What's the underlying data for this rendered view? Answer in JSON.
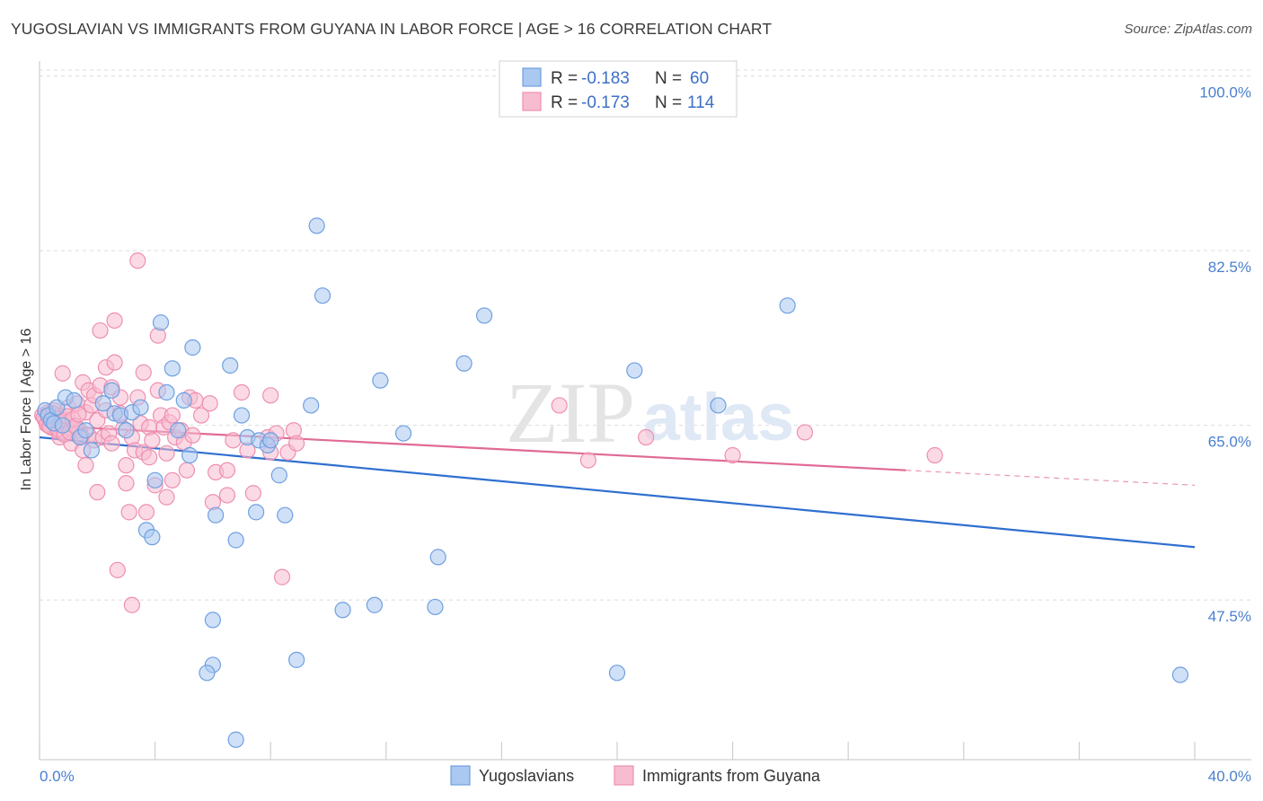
{
  "header": {
    "title": "YUGOSLAVIAN VS IMMIGRANTS FROM GUYANA IN LABOR FORCE | AGE > 16 CORRELATION CHART",
    "source": "Source: ZipAtlas.com"
  },
  "watermark": {
    "zip": "ZIP",
    "atlas": "atlas"
  },
  "colors": {
    "blue_fill": "#aac8f0",
    "blue_stroke": "#6f9fe0",
    "blue_line": "#2f6fd0",
    "pink_fill": "#f7bcd0",
    "pink_stroke": "#ee8fb0",
    "pink_line": "#e06a96",
    "grid": "#dcdcdc",
    "tick_label": "#4a7fd0"
  },
  "chart_data": {
    "type": "scatter",
    "title": "YUGOSLAVIAN VS IMMIGRANTS FROM GUYANA IN LABOR FORCE | AGE > 16 CORRELATION CHART",
    "xlabel": "",
    "ylabel": "In Labor Force | Age > 16",
    "xlim": [
      0,
      40
    ],
    "ylim": [
      31.5,
      101.5
    ],
    "y_ticks": [
      47.5,
      65.0,
      82.5,
      100.0
    ],
    "y_tick_labels": [
      "47.5%",
      "65.0%",
      "82.5%",
      "100.0%"
    ],
    "x_tick_labels": [
      "0.0%",
      "40.0%"
    ],
    "legend": {
      "position": "top-center",
      "entries": [
        {
          "r_label": "R =",
          "r_value": "-0.183",
          "n_label": "N =",
          "n_value": "60"
        },
        {
          "r_label": "R =",
          "r_value": "-0.173",
          "n_label": "N =",
          "n_value": "114"
        }
      ]
    },
    "series": [
      {
        "name": "Yugoslavians",
        "trend": {
          "x": [
            0,
            40
          ],
          "y": [
            63.8,
            52.8
          ],
          "solid_until": 40
        },
        "points": [
          [
            0.2,
            66.5
          ],
          [
            0.3,
            66.0
          ],
          [
            0.4,
            65.5
          ],
          [
            0.5,
            65.2
          ],
          [
            0.6,
            66.8
          ],
          [
            0.8,
            65.0
          ],
          [
            0.9,
            67.8
          ],
          [
            1.2,
            67.5
          ],
          [
            1.4,
            63.8
          ],
          [
            1.6,
            64.5
          ],
          [
            1.8,
            62.5
          ],
          [
            2.2,
            67.2
          ],
          [
            2.5,
            68.5
          ],
          [
            2.6,
            66.2
          ],
          [
            2.8,
            66.0
          ],
          [
            3.0,
            64.5
          ],
          [
            3.2,
            66.3
          ],
          [
            3.5,
            66.8
          ],
          [
            3.7,
            54.5
          ],
          [
            3.9,
            53.8
          ],
          [
            4.0,
            59.5
          ],
          [
            4.2,
            75.3
          ],
          [
            4.4,
            68.3
          ],
          [
            4.6,
            70.7
          ],
          [
            4.8,
            64.5
          ],
          [
            5.0,
            67.5
          ],
          [
            5.2,
            62.0
          ],
          [
            5.3,
            72.8
          ],
          [
            6.0,
            41.0
          ],
          [
            5.8,
            40.2
          ],
          [
            6.1,
            56.0
          ],
          [
            6.6,
            71.0
          ],
          [
            6.8,
            33.5
          ],
          [
            6.8,
            53.5
          ],
          [
            7.0,
            66.0
          ],
          [
            7.2,
            63.8
          ],
          [
            7.5,
            56.3
          ],
          [
            7.6,
            63.5
          ],
          [
            7.9,
            63.0
          ],
          [
            8.0,
            63.5
          ],
          [
            8.3,
            60.0
          ],
          [
            8.5,
            56.0
          ],
          [
            8.9,
            41.5
          ],
          [
            9.4,
            67.0
          ],
          [
            9.6,
            85.0
          ],
          [
            9.8,
            78.0
          ],
          [
            10.5,
            46.5
          ],
          [
            11.6,
            47.0
          ],
          [
            11.8,
            69.5
          ],
          [
            12.6,
            64.2
          ],
          [
            13.7,
            46.8
          ],
          [
            13.8,
            51.8
          ],
          [
            14.7,
            71.2
          ],
          [
            15.4,
            76.0
          ],
          [
            20.0,
            40.2
          ],
          [
            20.6,
            70.5
          ],
          [
            23.5,
            67.0
          ],
          [
            25.9,
            77.0
          ],
          [
            39.5,
            40.0
          ],
          [
            6.0,
            45.5
          ]
        ]
      },
      {
        "name": "Immigrants from Guyana",
        "trend": {
          "x": [
            0,
            40
          ],
          "y": [
            65.0,
            59.0
          ],
          "solid_until": 30
        },
        "points": [
          [
            0.1,
            66.0
          ],
          [
            0.2,
            65.5
          ],
          [
            0.3,
            65.0
          ],
          [
            0.3,
            66.3
          ],
          [
            0.4,
            64.8
          ],
          [
            0.5,
            65.2
          ],
          [
            0.5,
            66.5
          ],
          [
            0.6,
            64.5
          ],
          [
            0.7,
            66.0
          ],
          [
            0.7,
            63.8
          ],
          [
            0.8,
            65.5
          ],
          [
            0.8,
            70.2
          ],
          [
            0.9,
            64.2
          ],
          [
            1.0,
            66.8
          ],
          [
            1.0,
            64.8
          ],
          [
            1.1,
            63.2
          ],
          [
            1.2,
            65.0
          ],
          [
            1.3,
            67.2
          ],
          [
            1.4,
            64.5
          ],
          [
            1.5,
            69.3
          ],
          [
            1.5,
            62.5
          ],
          [
            1.6,
            66.3
          ],
          [
            1.6,
            61.0
          ],
          [
            1.7,
            68.5
          ],
          [
            1.7,
            64.0
          ],
          [
            1.8,
            67.0
          ],
          [
            1.9,
            63.5
          ],
          [
            1.9,
            68.0
          ],
          [
            2.0,
            65.5
          ],
          [
            2.0,
            58.3
          ],
          [
            2.1,
            69.0
          ],
          [
            2.1,
            74.5
          ],
          [
            2.2,
            63.8
          ],
          [
            2.3,
            70.8
          ],
          [
            2.3,
            66.5
          ],
          [
            2.4,
            64.2
          ],
          [
            2.5,
            68.8
          ],
          [
            2.5,
            63.2
          ],
          [
            2.6,
            75.5
          ],
          [
            2.6,
            71.3
          ],
          [
            2.7,
            50.5
          ],
          [
            2.8,
            67.8
          ],
          [
            2.8,
            66.2
          ],
          [
            2.9,
            64.7
          ],
          [
            3.0,
            59.2
          ],
          [
            3.0,
            61.0
          ],
          [
            3.1,
            56.3
          ],
          [
            3.2,
            63.8
          ],
          [
            3.2,
            47.0
          ],
          [
            3.3,
            62.5
          ],
          [
            3.4,
            81.5
          ],
          [
            3.4,
            67.8
          ],
          [
            3.5,
            65.2
          ],
          [
            3.6,
            70.3
          ],
          [
            3.6,
            62.3
          ],
          [
            3.7,
            56.3
          ],
          [
            3.8,
            64.8
          ],
          [
            3.8,
            61.8
          ],
          [
            3.9,
            63.5
          ],
          [
            4.0,
            59.0
          ],
          [
            4.1,
            74.0
          ],
          [
            4.1,
            68.5
          ],
          [
            4.2,
            66.0
          ],
          [
            4.3,
            64.8
          ],
          [
            4.4,
            62.2
          ],
          [
            4.4,
            57.8
          ],
          [
            4.5,
            65.3
          ],
          [
            4.6,
            66.0
          ],
          [
            4.6,
            59.5
          ],
          [
            4.7,
            63.8
          ],
          [
            4.9,
            64.5
          ],
          [
            5.0,
            63.3
          ],
          [
            5.1,
            60.5
          ],
          [
            5.2,
            67.8
          ],
          [
            5.3,
            64.0
          ],
          [
            5.4,
            67.5
          ],
          [
            5.6,
            66.0
          ],
          [
            5.9,
            67.2
          ],
          [
            6.0,
            57.3
          ],
          [
            6.1,
            60.3
          ],
          [
            6.5,
            60.5
          ],
          [
            6.5,
            58.0
          ],
          [
            6.7,
            63.5
          ],
          [
            7.0,
            68.3
          ],
          [
            7.2,
            62.5
          ],
          [
            7.4,
            58.2
          ],
          [
            7.9,
            63.8
          ],
          [
            8.0,
            68.0
          ],
          [
            8.0,
            62.3
          ],
          [
            8.2,
            64.2
          ],
          [
            8.4,
            49.8
          ],
          [
            8.6,
            62.3
          ],
          [
            8.8,
            64.5
          ],
          [
            8.9,
            63.2
          ],
          [
            0.15,
            65.8
          ],
          [
            0.25,
            65.1
          ],
          [
            0.35,
            64.9
          ],
          [
            0.45,
            66.2
          ],
          [
            0.55,
            65.7
          ],
          [
            0.65,
            64.6
          ],
          [
            0.75,
            65.3
          ],
          [
            0.85,
            64.1
          ],
          [
            0.95,
            65.9
          ],
          [
            1.05,
            64.3
          ],
          [
            1.15,
            65.6
          ],
          [
            1.25,
            64.9
          ],
          [
            1.35,
            66.1
          ],
          [
            1.45,
            63.9
          ],
          [
            18.0,
            67.0
          ],
          [
            19.0,
            61.5
          ],
          [
            21.0,
            63.8
          ],
          [
            26.5,
            64.3
          ],
          [
            31.0,
            62.0
          ],
          [
            24.0,
            62.0
          ]
        ]
      }
    ]
  },
  "bottom_legend": {
    "items": [
      {
        "label": "Yugoslavians"
      },
      {
        "label": "Immigrants from Guyana"
      }
    ]
  }
}
